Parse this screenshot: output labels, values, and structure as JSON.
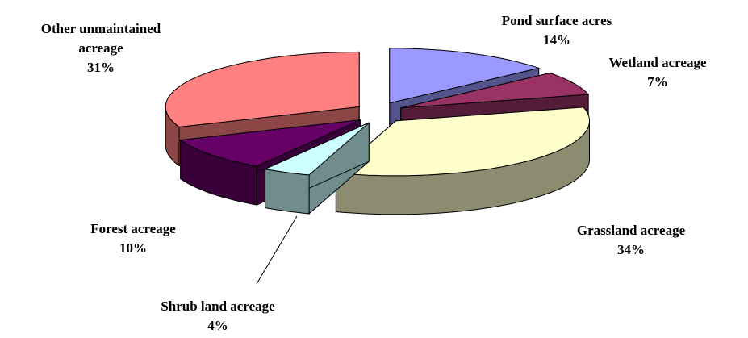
{
  "chart_data": {
    "type": "pie3d",
    "categories": [
      "Pond surface acres",
      "Wetland acreage",
      "Grassland acreage",
      "Shrub land acreage",
      "Forest acreage",
      "Other unmaintained acreage"
    ],
    "values": [
      14,
      7,
      34,
      4,
      10,
      31
    ],
    "value_labels": [
      "14%",
      "7%",
      "34%",
      "4%",
      "10%",
      "31%"
    ],
    "colors": [
      "#9999ff",
      "#993366",
      "#ffffcc",
      "#ccffff",
      "#660066",
      "#ff8080"
    ]
  }
}
